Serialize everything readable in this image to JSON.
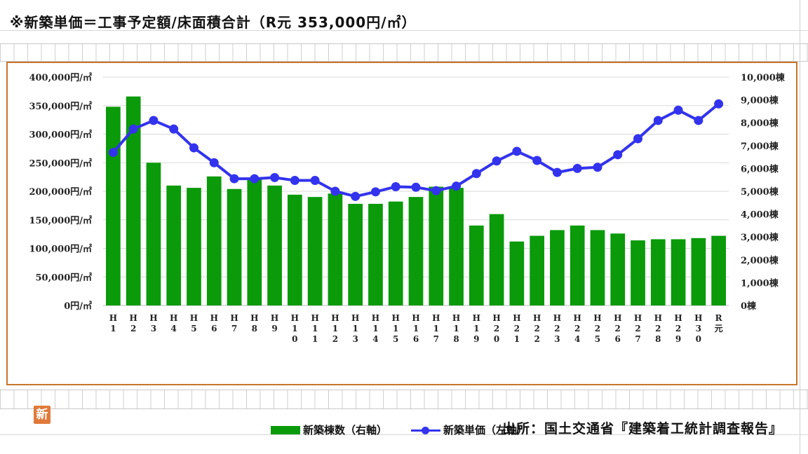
{
  "header": {
    "note": "※新築単価＝工事予定額/床面積合計（R元 353,000円/㎡）"
  },
  "footer": {
    "source": "出所：国土交通省『建築着工統計調査報告』"
  },
  "badge": {
    "text": "新"
  },
  "colors": {
    "bars": "#0a9a0a",
    "line": "#3333ee",
    "frame": "#c8752a"
  },
  "chart_data": {
    "type": "bar",
    "categories": [
      "H1",
      "H2",
      "H3",
      "H4",
      "H5",
      "H6",
      "H7",
      "H8",
      "H9",
      "H10",
      "H11",
      "H12",
      "H13",
      "H14",
      "H15",
      "H16",
      "H17",
      "H18",
      "H19",
      "H20",
      "H21",
      "H22",
      "H23",
      "H24",
      "H25",
      "H26",
      "H27",
      "H28",
      "H29",
      "H30",
      "R元"
    ],
    "category_labels": [
      "H\n1",
      "H\n2",
      "H\n3",
      "H\n4",
      "H\n5",
      "H\n6",
      "H\n7",
      "H\n8",
      "H\n9",
      "H\n1\n0",
      "H\n1\n1",
      "H\n1\n2",
      "H\n1\n3",
      "H\n1\n4",
      "H\n1\n5",
      "H\n1\n6",
      "H\n1\n7",
      "H\n1\n8",
      "H\n1\n9",
      "H\n2\n0",
      "H\n2\n1",
      "H\n2\n2",
      "H\n2\n3",
      "H\n2\n4",
      "H\n2\n5",
      "H\n2\n6",
      "H\n2\n7",
      "H\n2\n8",
      "H\n2\n9",
      "H\n3\n0",
      "R\n元"
    ],
    "series": [
      {
        "name": "新築棟数（右軸）",
        "type": "bar",
        "axis": "right",
        "values": [
          8700,
          9150,
          6250,
          5250,
          5150,
          5650,
          5100,
          5600,
          5250,
          4850,
          4750,
          4900,
          4450,
          4450,
          4550,
          4750,
          5200,
          5150,
          3500,
          4000,
          2800,
          3050,
          3300,
          3500,
          3300,
          3150,
          2850,
          2900,
          2900,
          2950,
          3050
        ]
      },
      {
        "name": "新築単価（左軸）",
        "type": "line",
        "axis": "left",
        "values": [
          268000,
          309000,
          324000,
          309000,
          276000,
          250000,
          222000,
          222000,
          224000,
          219000,
          219000,
          200000,
          191000,
          199000,
          208000,
          207000,
          201000,
          209000,
          231000,
          253000,
          270000,
          254000,
          233000,
          240000,
          242000,
          264000,
          292000,
          324000,
          342000,
          324000,
          353000
        ]
      }
    ],
    "left_axis": {
      "min": 0,
      "max": 400000,
      "ticks": [
        "0円/㎡",
        "50,000円/㎡",
        "100,000円/㎡",
        "150,000円/㎡",
        "200,000円/㎡",
        "250,000円/㎡",
        "300,000円/㎡",
        "350,000円/㎡",
        "400,000円/㎡"
      ]
    },
    "right_axis": {
      "min": 0,
      "max": 10000,
      "ticks": [
        "0棟",
        "1,000棟",
        "2,000棟",
        "3,000棟",
        "4,000棟",
        "5,000棟",
        "6,000棟",
        "7,000棟",
        "8,000棟",
        "9,000棟",
        "10,000棟"
      ]
    },
    "legend": [
      "新築棟数（右軸）",
      "新築単価（左軸）"
    ],
    "legend_position": "bottom",
    "grid": true
  }
}
